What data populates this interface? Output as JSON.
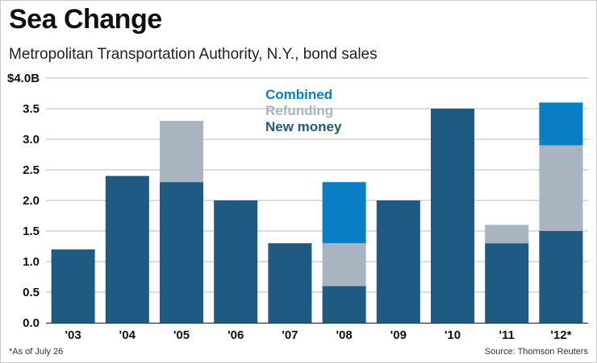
{
  "title": "Sea Change",
  "subtitle": "Metropolitan Transportation Authority, N.Y., bond sales",
  "footnote": "*As of July 26",
  "source": "Source: Thomson Reuters",
  "colors": {
    "new_money": "#1e5a82",
    "refunding": "#a8b4bf",
    "combined": "#0a7ec5",
    "gridline": "#bbbbbb",
    "axis_text": "#111111"
  },
  "chart_data": {
    "type": "bar",
    "stacked": true,
    "categories": [
      "'03",
      "'04",
      "'05",
      "'06",
      "'07",
      "'08",
      "'09",
      "'10",
      "'11",
      "'12*"
    ],
    "series": [
      {
        "name": "New money",
        "color_key": "new_money",
        "values": [
          1.2,
          2.4,
          2.3,
          2.0,
          1.3,
          0.6,
          2.0,
          3.5,
          1.3,
          1.5
        ]
      },
      {
        "name": "Refunding",
        "color_key": "refunding",
        "values": [
          0,
          0,
          1.0,
          0,
          0,
          0.7,
          0,
          0,
          0.3,
          1.4
        ]
      },
      {
        "name": "Combined",
        "color_key": "combined",
        "values": [
          0,
          0,
          0,
          0,
          0,
          1.0,
          0,
          0,
          0,
          0.7
        ]
      }
    ],
    "legend": [
      "Combined",
      "Refunding",
      "New money"
    ],
    "y_ticks": [
      "0.0",
      "0.5",
      "1.0",
      "1.5",
      "2.0",
      "2.5",
      "3.0",
      "3.5",
      "$4.0B"
    ],
    "y_tick_values": [
      0,
      0.5,
      1.0,
      1.5,
      2.0,
      2.5,
      3.0,
      3.5,
      4.0
    ],
    "ylim": [
      0,
      4.0
    ],
    "xlabel": "",
    "ylabel": "",
    "grid": true,
    "legend_position": "top-center"
  }
}
